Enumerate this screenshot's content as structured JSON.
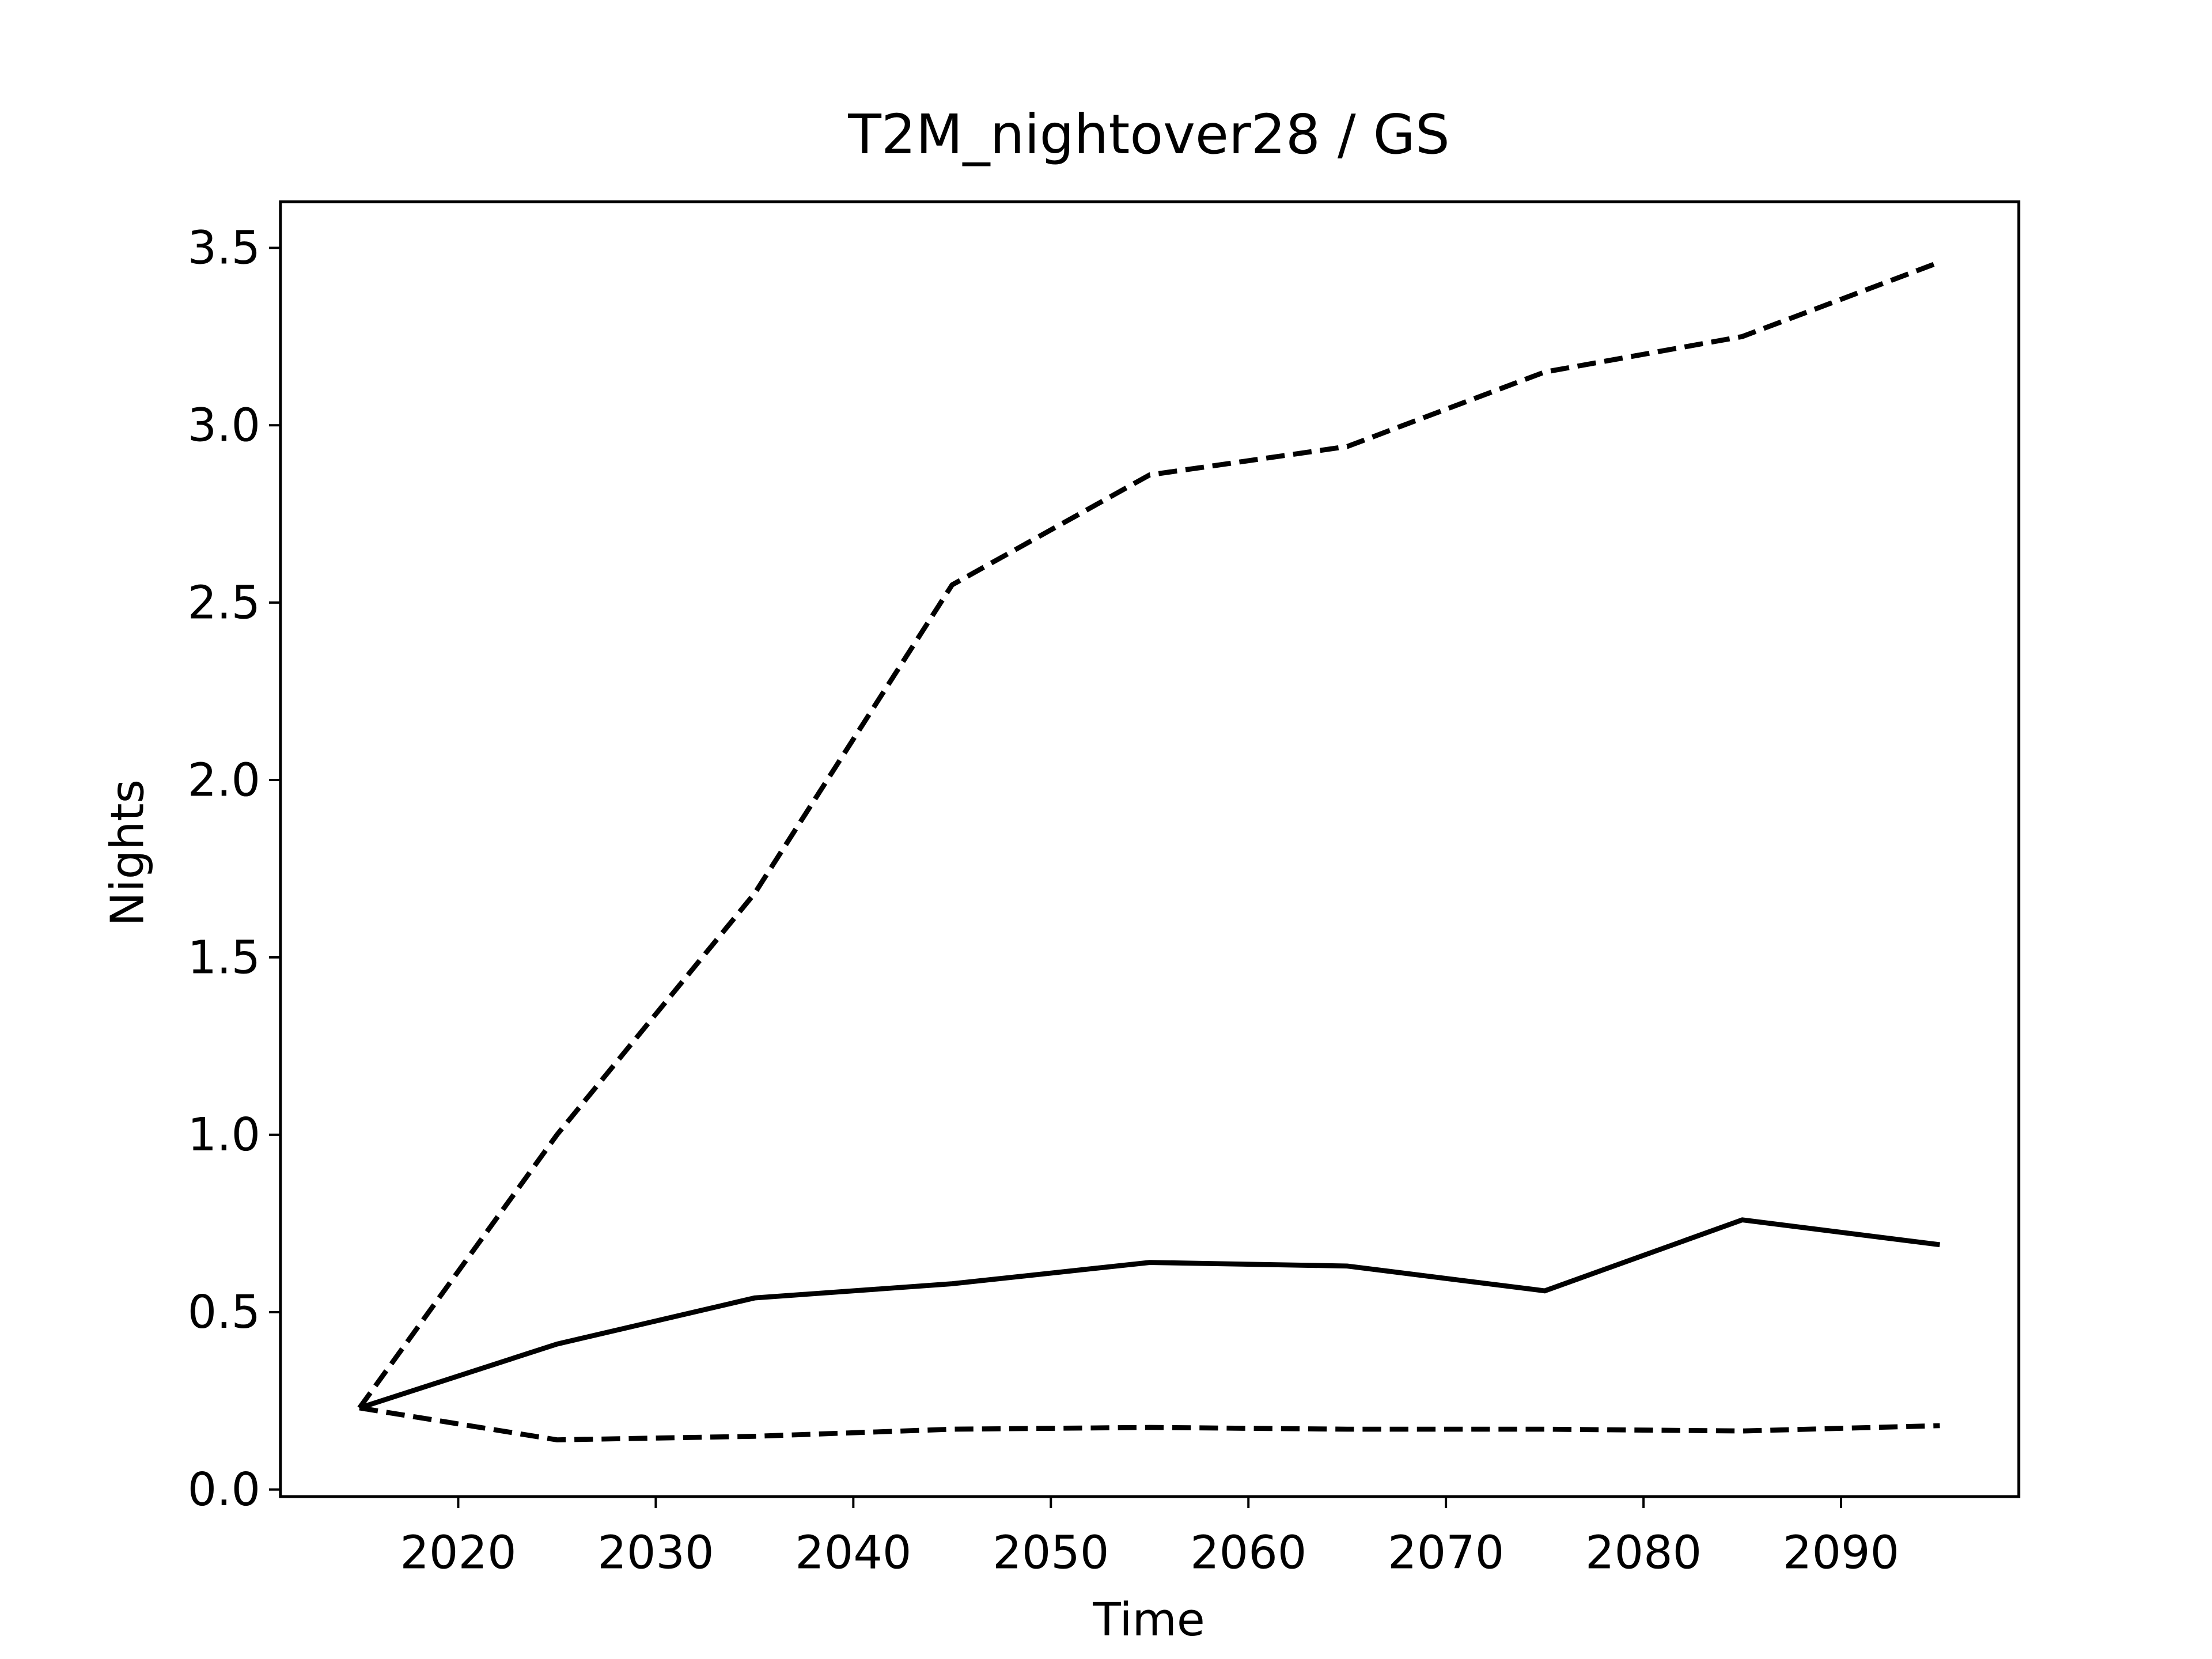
{
  "chart_data": {
    "type": "line",
    "title": "T2M_nightover28 / GS",
    "x_label": "Time",
    "y_label": "Nights",
    "x": [
      2015,
      2025,
      2035,
      2045,
      2055,
      2065,
      2075,
      2085,
      2095
    ],
    "series": [
      {
        "color": "#000000",
        "linestyle": "solid",
        "values": [
          0.23,
          0.41,
          0.54,
          0.58,
          0.64,
          0.63,
          0.56,
          0.76,
          0.69
        ]
      },
      {
        "color": "#000000",
        "linestyle": "dashed",
        "values": [
          0.23,
          1.0,
          1.68,
          2.55,
          2.86,
          2.94,
          3.15,
          3.25,
          3.46
        ]
      },
      {
        "color": "#000000",
        "linestyle": "dashed",
        "values": [
          0.23,
          0.14,
          0.15,
          0.17,
          0.175,
          0.17,
          0.17,
          0.165,
          0.18
        ]
      }
    ],
    "xlim": [
      2011,
      2099
    ],
    "ylim": [
      -0.02,
      3.63
    ],
    "xticks": [
      2020,
      2030,
      2040,
      2050,
      2060,
      2070,
      2080,
      2090
    ],
    "yticks": [
      {
        "value": 0,
        "label": "0.0"
      },
      0.5,
      {
        "value": 1,
        "label": "1.0"
      },
      1.5,
      {
        "value": 2,
        "label": "2.0"
      },
      2.5,
      {
        "value": 3,
        "label": "3.0"
      },
      3.5
    ],
    "grid": false
  }
}
